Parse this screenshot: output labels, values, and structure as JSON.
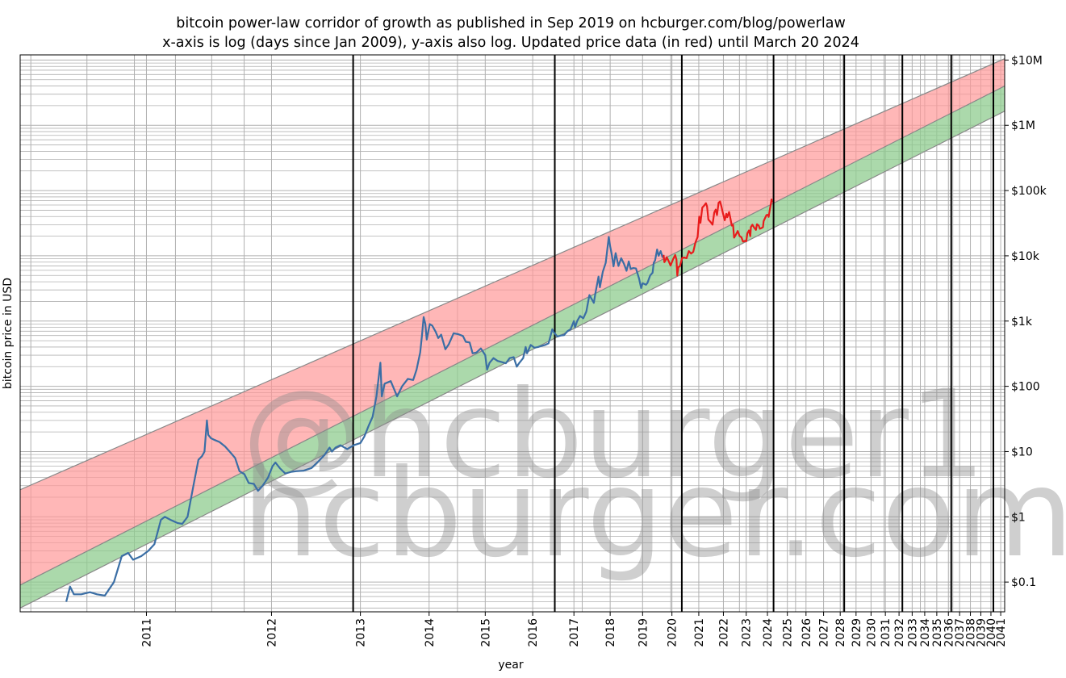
{
  "chart_data": {
    "type": "line",
    "title": "bitcoin power-law corridor of growth as published in Sep 2019 on hcburger.com/blog/powerlaw",
    "subtitle": "x-axis is log (days since Jan 2009), y-axis also log. Updated price data (in red) until March 20 2024",
    "xlabel": "year",
    "ylabel": "bitcoin price in USD",
    "x_scale": "log",
    "y_scale": "log",
    "xlim": [
      "2010-05",
      "2041-06"
    ],
    "ylim": [
      0.035,
      12000000
    ],
    "grid": true,
    "x_tick_labels": [
      "2011",
      "2012",
      "2013",
      "2014",
      "2015",
      "2016",
      "2017",
      "2018",
      "2019",
      "2020",
      "2021",
      "2022",
      "2023",
      "2024",
      "2025",
      "2026",
      "2027",
      "2028",
      "2029",
      "2030",
      "2031",
      "2032",
      "2033",
      "2034",
      "2035",
      "2036",
      "2037",
      "2038",
      "2039",
      "2040",
      "2041"
    ],
    "y_ticks": [
      {
        "value": 0.1,
        "label": "$0.1"
      },
      {
        "value": 1,
        "label": "$1"
      },
      {
        "value": 10,
        "label": "$10"
      },
      {
        "value": 100,
        "label": "$100"
      },
      {
        "value": 1000,
        "label": "$1k"
      },
      {
        "value": 10000,
        "label": "$10k"
      },
      {
        "value": 100000,
        "label": "$100k"
      },
      {
        "value": 1000000,
        "label": "$1M"
      },
      {
        "value": 10000000,
        "label": "$10M"
      }
    ],
    "vertical_markers": [
      "2012-11-28",
      "2016-07-09",
      "2020-05-11",
      "2024-04-20",
      "2028-04",
      "2032-04",
      "2036-04",
      "2040-04"
    ],
    "corridor": {
      "upper": [
        {
          "x": "2010-05",
          "y": 2.6
        },
        {
          "x": "2041-06",
          "y": 10500000
        }
      ],
      "middle": [
        {
          "x": "2010-05",
          "y": 0.09
        },
        {
          "x": "2041-06",
          "y": 4000000
        }
      ],
      "lower": [
        {
          "x": "2010-05",
          "y": 0.04
        },
        {
          "x": "2041-06",
          "y": 1650000
        }
      ],
      "colors": {
        "upper_band": "#ff9999",
        "lower_band": "#8fcc8f",
        "edge": "#888888"
      }
    },
    "series": [
      {
        "color": "#3a6ea5",
        "points": [
          [
            "2010-07-18",
            0.05
          ],
          [
            "2010-07-25",
            0.085
          ],
          [
            "2010-08-01",
            0.065
          ],
          [
            "2010-08-15",
            0.065
          ],
          [
            "2010-09-01",
            0.07
          ],
          [
            "2010-09-15",
            0.065
          ],
          [
            "2010-10-01",
            0.062
          ],
          [
            "2010-10-20",
            0.1
          ],
          [
            "2010-11-06",
            0.25
          ],
          [
            "2010-11-20",
            0.28
          ],
          [
            "2010-12-01",
            0.22
          ],
          [
            "2010-12-20",
            0.25
          ],
          [
            "2011-01-05",
            0.3
          ],
          [
            "2011-01-20",
            0.38
          ],
          [
            "2011-02-05",
            0.9
          ],
          [
            "2011-02-15",
            1.0
          ],
          [
            "2011-03-01",
            0.9
          ],
          [
            "2011-03-20",
            0.8
          ],
          [
            "2011-04-01",
            0.78
          ],
          [
            "2011-04-15",
            1.0
          ],
          [
            "2011-05-01",
            3.0
          ],
          [
            "2011-05-15",
            7.5
          ],
          [
            "2011-05-25",
            8.5
          ],
          [
            "2011-06-01",
            10
          ],
          [
            "2011-06-08",
            30
          ],
          [
            "2011-06-12",
            18
          ],
          [
            "2011-06-20",
            16
          ],
          [
            "2011-07-01",
            15
          ],
          [
            "2011-07-15",
            14
          ],
          [
            "2011-08-01",
            12
          ],
          [
            "2011-08-15",
            10
          ],
          [
            "2011-09-01",
            8
          ],
          [
            "2011-09-15",
            5
          ],
          [
            "2011-10-01",
            4.5
          ],
          [
            "2011-10-15",
            3.3
          ],
          [
            "2011-11-01",
            3.2
          ],
          [
            "2011-11-15",
            2.5
          ],
          [
            "2011-12-01",
            3.0
          ],
          [
            "2011-12-20",
            4.0
          ],
          [
            "2012-01-05",
            6.0
          ],
          [
            "2012-01-15",
            6.8
          ],
          [
            "2012-02-01",
            5.5
          ],
          [
            "2012-02-20",
            4.6
          ],
          [
            "2012-03-15",
            4.9
          ],
          [
            "2012-04-01",
            5.0
          ],
          [
            "2012-05-01",
            5.1
          ],
          [
            "2012-06-01",
            5.6
          ],
          [
            "2012-07-01",
            7.2
          ],
          [
            "2012-07-25",
            8.9
          ],
          [
            "2012-08-15",
            11.5
          ],
          [
            "2012-08-25",
            10.0
          ],
          [
            "2012-09-10",
            11.5
          ],
          [
            "2012-10-01",
            12.5
          ],
          [
            "2012-11-01",
            10.9
          ],
          [
            "2012-12-01",
            12.5
          ],
          [
            "2013-01-01",
            13.5
          ],
          [
            "2013-01-20",
            17
          ],
          [
            "2013-02-10",
            25
          ],
          [
            "2013-03-01",
            34
          ],
          [
            "2013-03-20",
            70
          ],
          [
            "2013-04-09",
            230
          ],
          [
            "2013-04-16",
            70
          ],
          [
            "2013-05-01",
            110
          ],
          [
            "2013-06-01",
            120
          ],
          [
            "2013-07-05",
            70
          ],
          [
            "2013-08-01",
            100
          ],
          [
            "2013-09-01",
            130
          ],
          [
            "2013-10-01",
            125
          ],
          [
            "2013-10-20",
            180
          ],
          [
            "2013-11-10",
            330
          ],
          [
            "2013-11-20",
            600
          ],
          [
            "2013-11-30",
            1150
          ],
          [
            "2013-12-10",
            900
          ],
          [
            "2013-12-18",
            520
          ],
          [
            "2014-01-05",
            900
          ],
          [
            "2014-01-20",
            850
          ],
          [
            "2014-02-10",
            680
          ],
          [
            "2014-02-25",
            550
          ],
          [
            "2014-03-15",
            620
          ],
          [
            "2014-04-10",
            370
          ],
          [
            "2014-05-01",
            440
          ],
          [
            "2014-06-01",
            650
          ],
          [
            "2014-07-01",
            630
          ],
          [
            "2014-08-01",
            590
          ],
          [
            "2014-08-20",
            480
          ],
          [
            "2014-09-15",
            470
          ],
          [
            "2014-10-05",
            320
          ],
          [
            "2014-11-01",
            330
          ],
          [
            "2014-12-01",
            380
          ],
          [
            "2015-01-01",
            300
          ],
          [
            "2015-01-14",
            180
          ],
          [
            "2015-02-01",
            230
          ],
          [
            "2015-03-01",
            270
          ],
          [
            "2015-04-01",
            245
          ],
          [
            "2015-05-01",
            235
          ],
          [
            "2015-06-01",
            225
          ],
          [
            "2015-07-01",
            270
          ],
          [
            "2015-08-01",
            280
          ],
          [
            "2015-08-25",
            200
          ],
          [
            "2015-09-15",
            230
          ],
          [
            "2015-10-15",
            270
          ],
          [
            "2015-11-04",
            400
          ],
          [
            "2015-11-15",
            320
          ],
          [
            "2015-12-15",
            430
          ],
          [
            "2016-01-15",
            390
          ],
          [
            "2016-02-15",
            400
          ],
          [
            "2016-03-15",
            415
          ],
          [
            "2016-04-15",
            430
          ],
          [
            "2016-05-15",
            455
          ],
          [
            "2016-06-17",
            750
          ],
          [
            "2016-07-01",
            670
          ],
          [
            "2016-08-01",
            580
          ],
          [
            "2016-09-01",
            600
          ],
          [
            "2016-10-01",
            610
          ],
          [
            "2016-11-01",
            700
          ],
          [
            "2016-12-01",
            750
          ],
          [
            "2017-01-01",
            1000
          ],
          [
            "2017-01-12",
            800
          ],
          [
            "2017-02-01",
            1000
          ],
          [
            "2017-03-01",
            1200
          ],
          [
            "2017-04-01",
            1100
          ],
          [
            "2017-05-01",
            1400
          ],
          [
            "2017-06-01",
            2500
          ],
          [
            "2017-07-15",
            1900
          ],
          [
            "2017-08-01",
            2700
          ],
          [
            "2017-09-01",
            4800
          ],
          [
            "2017-09-15",
            3300
          ],
          [
            "2017-10-15",
            5700
          ],
          [
            "2017-11-15",
            7800
          ],
          [
            "2017-12-17",
            19500
          ],
          [
            "2018-01-01",
            14000
          ],
          [
            "2018-01-15",
            11000
          ],
          [
            "2018-02-06",
            6900
          ],
          [
            "2018-03-01",
            11000
          ],
          [
            "2018-04-01",
            7000
          ],
          [
            "2018-05-01",
            9200
          ],
          [
            "2018-06-01",
            7500
          ],
          [
            "2018-06-29",
            5900
          ],
          [
            "2018-07-25",
            8200
          ],
          [
            "2018-08-15",
            6300
          ],
          [
            "2018-09-15",
            6500
          ],
          [
            "2018-10-15",
            6400
          ],
          [
            "2018-11-20",
            4500
          ],
          [
            "2018-12-15",
            3200
          ],
          [
            "2019-01-01",
            3800
          ],
          [
            "2019-02-10",
            3600
          ],
          [
            "2019-03-01",
            3850
          ],
          [
            "2019-04-02",
            5000
          ],
          [
            "2019-05-01",
            5500
          ],
          [
            "2019-05-15",
            7800
          ],
          [
            "2019-06-01",
            8500
          ],
          [
            "2019-06-26",
            12500
          ],
          [
            "2019-07-15",
            10000
          ],
          [
            "2019-08-10",
            11800
          ],
          [
            "2019-09-01",
            9600
          ],
          [
            "2019-09-15",
            10300
          ]
        ]
      },
      {
        "color": "#e81b1b",
        "points": [
          [
            "2019-09-15",
            10300
          ],
          [
            "2019-09-26",
            8000
          ],
          [
            "2019-10-10",
            8500
          ],
          [
            "2019-10-26",
            9500
          ],
          [
            "2019-11-15",
            8500
          ],
          [
            "2019-12-15",
            7100
          ],
          [
            "2020-01-15",
            8800
          ],
          [
            "2020-02-13",
            10300
          ],
          [
            "2020-03-01",
            8700
          ],
          [
            "2020-03-12",
            5000
          ],
          [
            "2020-03-25",
            6700
          ],
          [
            "2020-04-15",
            6900
          ],
          [
            "2020-05-15",
            9300
          ],
          [
            "2020-06-15",
            9400
          ],
          [
            "2020-07-15",
            9200
          ],
          [
            "2020-08-15",
            11800
          ],
          [
            "2020-09-15",
            10800
          ],
          [
            "2020-10-15",
            11500
          ],
          [
            "2020-11-15",
            16000
          ],
          [
            "2020-12-15",
            19500
          ],
          [
            "2021-01-08",
            40000
          ],
          [
            "2021-01-25",
            32000
          ],
          [
            "2021-02-20",
            55000
          ],
          [
            "2021-03-15",
            58000
          ],
          [
            "2021-04-14",
            64000
          ],
          [
            "2021-05-01",
            57000
          ],
          [
            "2021-05-19",
            36000
          ],
          [
            "2021-06-20",
            33000
          ],
          [
            "2021-07-20",
            30000
          ],
          [
            "2021-08-15",
            46000
          ],
          [
            "2021-09-06",
            51000
          ],
          [
            "2021-09-25",
            42000
          ],
          [
            "2021-10-20",
            65000
          ],
          [
            "2021-11-10",
            68000
          ],
          [
            "2021-12-01",
            57000
          ],
          [
            "2021-12-20",
            47000
          ],
          [
            "2022-01-22",
            35000
          ],
          [
            "2022-02-15",
            44000
          ],
          [
            "2022-03-01",
            39000
          ],
          [
            "2022-03-30",
            47000
          ],
          [
            "2022-04-15",
            40000
          ],
          [
            "2022-05-12",
            29000
          ],
          [
            "2022-06-01",
            30000
          ],
          [
            "2022-06-18",
            19000
          ],
          [
            "2022-07-15",
            21000
          ],
          [
            "2022-08-15",
            24000
          ],
          [
            "2022-09-15",
            20000
          ],
          [
            "2022-10-15",
            19200
          ],
          [
            "2022-11-09",
            16500
          ],
          [
            "2022-12-15",
            17000
          ],
          [
            "2023-01-01",
            16600
          ],
          [
            "2023-01-20",
            22000
          ],
          [
            "2023-02-15",
            24500
          ],
          [
            "2023-03-10",
            20000
          ],
          [
            "2023-03-20",
            27500
          ],
          [
            "2023-04-15",
            30000
          ],
          [
            "2023-05-15",
            27000
          ],
          [
            "2023-06-15",
            25000
          ],
          [
            "2023-07-01",
            30500
          ],
          [
            "2023-08-01",
            29000
          ],
          [
            "2023-08-20",
            26000
          ],
          [
            "2023-09-15",
            26500
          ],
          [
            "2023-10-15",
            27500
          ],
          [
            "2023-10-25",
            34000
          ],
          [
            "2023-11-15",
            37000
          ],
          [
            "2023-12-15",
            42000
          ],
          [
            "2024-01-15",
            42500
          ],
          [
            "2024-01-23",
            39500
          ],
          [
            "2024-02-15",
            52000
          ],
          [
            "2024-03-01",
            62000
          ],
          [
            "2024-03-14",
            73000
          ],
          [
            "2024-03-20",
            66000
          ]
        ]
      }
    ]
  },
  "watermark": {
    "line1": "@hcburger1",
    "line2": "hcburger.com"
  }
}
